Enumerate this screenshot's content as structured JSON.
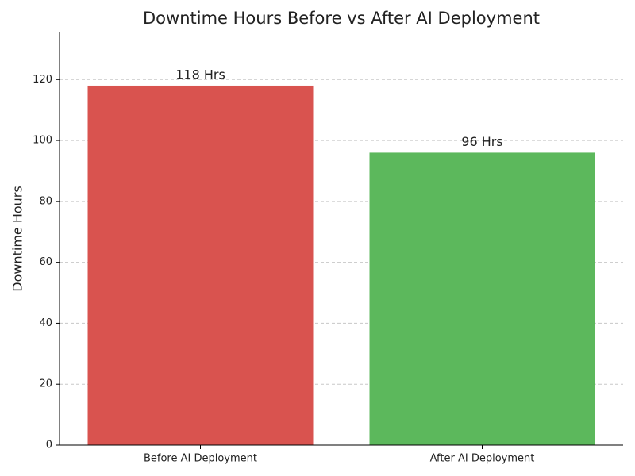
{
  "chart_data": {
    "type": "bar",
    "title": "Downtime Hours Before vs After AI Deployment",
    "y_label": "Downtime Hours",
    "categories": [
      "Before AI Deployment",
      "After AI Deployment"
    ],
    "values": [
      118,
      96
    ],
    "value_labels": [
      "118 Hrs",
      "96 Hrs"
    ],
    "colors": [
      "#d9534f",
      "#5cb85c"
    ],
    "ylim": [
      0,
      135.7
    ],
    "yticks": [
      0,
      20,
      40,
      60,
      80,
      100,
      120
    ],
    "grid": true
  }
}
